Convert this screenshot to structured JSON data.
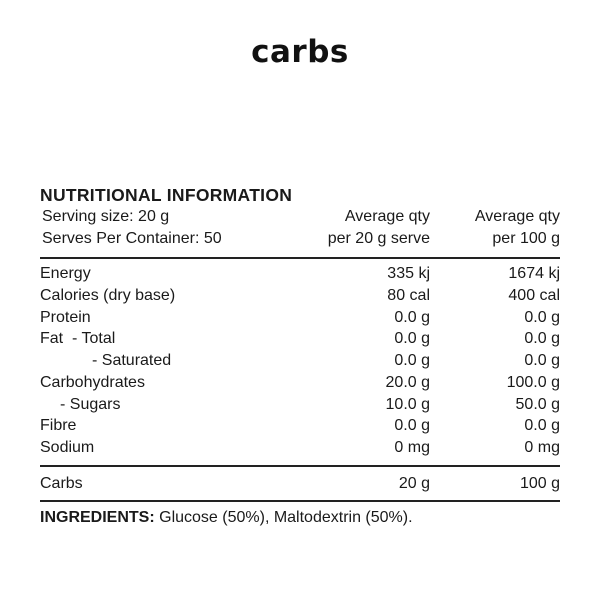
{
  "brand": "carbs",
  "label": {
    "title": "NUTRITIONAL INFORMATION",
    "serving_size": "Serving size: 20 g",
    "serves_per_container": "Serves Per Container: 50",
    "col1_header": [
      "Average qty",
      "per 20 g serve"
    ],
    "col2_header": [
      "Average qty",
      "per 100 g"
    ],
    "rows": [
      {
        "name": "Energy",
        "per_serve": "335 kj",
        "per_100g": "1674 kj"
      },
      {
        "name": "Calories (dry base)",
        "per_serve": "80 cal",
        "per_100g": "400 cal"
      },
      {
        "name": "Protein",
        "per_serve": "0.0 g",
        "per_100g": "0.0 g"
      },
      {
        "name": "Fat  - Total",
        "per_serve": "0.0 g",
        "per_100g": "0.0 g"
      },
      {
        "name": "- Saturated",
        "per_serve": "0.0 g",
        "per_100g": "0.0 g"
      },
      {
        "name": "Carbohydrates",
        "per_serve": "20.0 g",
        "per_100g": "100.0 g"
      },
      {
        "name": "- Sugars",
        "per_serve": "10.0 g",
        "per_100g": "50.0 g"
      },
      {
        "name": "Fibre",
        "per_serve": "0.0 g",
        "per_100g": "0.0 g"
      },
      {
        "name": "Sodium",
        "per_serve": "0 mg",
        "per_100g": "0 mg"
      }
    ],
    "extra_row": {
      "name": "Carbs",
      "per_serve": "20 g",
      "per_100g": "100 g"
    },
    "ingredients_label": "INGREDIENTS:",
    "ingredients_text": " Glucose (50%), Maltodextrin (50%)."
  }
}
